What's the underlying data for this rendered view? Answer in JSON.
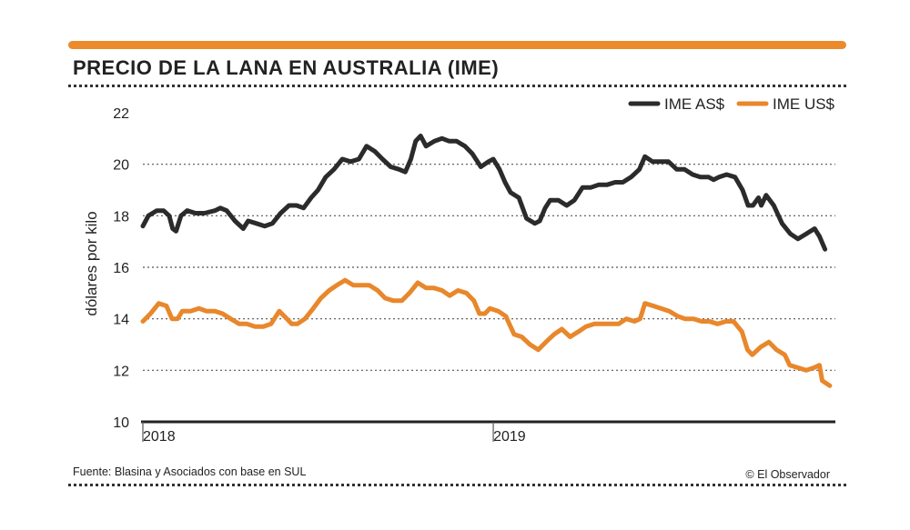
{
  "title": "PRECIO DE LA LANA EN AUSTRALIA (IME)",
  "source": "Fuente: Blasina y Asociados con base en SUL",
  "credit": "© El Observador",
  "colors": {
    "accent": "#ec8a2e",
    "series_as": "#2b2b2b",
    "series_us": "#e8872b"
  },
  "chart_data": {
    "type": "line",
    "title": "PRECIO DE LA LANA EN AUSTRALIA (IME)",
    "xlabel": "",
    "ylabel": "dólares por kilo",
    "ylim": [
      10,
      22
    ],
    "yticks": [
      "10",
      "12",
      "14",
      "16",
      "18",
      "20",
      "22"
    ],
    "xlim": [
      0,
      100
    ],
    "xticks": [
      {
        "x": 0,
        "label": "2018"
      },
      {
        "x": 50.6,
        "label": "2019"
      }
    ],
    "grid": true,
    "legend": "top-right",
    "series": [
      {
        "name": "IME AS$",
        "color": "#2b2b2b",
        "points": [
          [
            0,
            17.6
          ],
          [
            0.8,
            18.0
          ],
          [
            2,
            18.2
          ],
          [
            3,
            18.2
          ],
          [
            3.8,
            18.0
          ],
          [
            4.3,
            17.5
          ],
          [
            4.8,
            17.4
          ],
          [
            5.5,
            18.0
          ],
          [
            6.4,
            18.2
          ],
          [
            7.6,
            18.1
          ],
          [
            8.9,
            18.1
          ],
          [
            10.4,
            18.2
          ],
          [
            11.2,
            18.3
          ],
          [
            12.1,
            18.2
          ],
          [
            13.3,
            17.8
          ],
          [
            14.5,
            17.5
          ],
          [
            15.2,
            17.8
          ],
          [
            16.4,
            17.7
          ],
          [
            17.6,
            17.6
          ],
          [
            18.7,
            17.7
          ],
          [
            19.9,
            18.1
          ],
          [
            21.1,
            18.4
          ],
          [
            22.2,
            18.4
          ],
          [
            23.2,
            18.3
          ],
          [
            24.3,
            18.7
          ],
          [
            25.3,
            19.0
          ],
          [
            26.4,
            19.5
          ],
          [
            27.6,
            19.8
          ],
          [
            28.8,
            20.2
          ],
          [
            30.0,
            20.1
          ],
          [
            31.2,
            20.2
          ],
          [
            32.3,
            20.7
          ],
          [
            33.5,
            20.5
          ],
          [
            34.6,
            20.2
          ],
          [
            35.8,
            19.9
          ],
          [
            37.0,
            19.8
          ],
          [
            37.9,
            19.7
          ],
          [
            38.7,
            20.2
          ],
          [
            39.4,
            20.9
          ],
          [
            40.1,
            21.1
          ],
          [
            40.9,
            20.7
          ],
          [
            42.1,
            20.9
          ],
          [
            43.2,
            21.0
          ],
          [
            44.2,
            20.9
          ],
          [
            45.3,
            20.9
          ],
          [
            46.5,
            20.7
          ],
          [
            47.6,
            20.4
          ],
          [
            48.8,
            19.9
          ],
          [
            49.9,
            20.1
          ],
          [
            50.6,
            20.2
          ],
          [
            51.5,
            19.8
          ],
          [
            52.3,
            19.3
          ],
          [
            53.1,
            18.9
          ],
          [
            54.3,
            18.7
          ],
          [
            55.4,
            17.9
          ],
          [
            56.6,
            17.7
          ],
          [
            57.3,
            17.8
          ],
          [
            58.1,
            18.3
          ],
          [
            58.8,
            18.6
          ],
          [
            60.0,
            18.6
          ],
          [
            61.2,
            18.4
          ],
          [
            62.3,
            18.6
          ],
          [
            63.5,
            19.1
          ],
          [
            64.7,
            19.1
          ],
          [
            65.8,
            19.2
          ],
          [
            67.0,
            19.2
          ],
          [
            68.2,
            19.3
          ],
          [
            69.3,
            19.3
          ],
          [
            70.5,
            19.5
          ],
          [
            71.7,
            19.8
          ],
          [
            72.5,
            20.3
          ],
          [
            73.6,
            20.1
          ],
          [
            74.7,
            20.1
          ],
          [
            75.9,
            20.1
          ],
          [
            77.1,
            19.8
          ],
          [
            78.2,
            19.8
          ],
          [
            79.4,
            19.6
          ],
          [
            80.5,
            19.5
          ],
          [
            81.7,
            19.5
          ],
          [
            82.4,
            19.4
          ],
          [
            83.2,
            19.5
          ],
          [
            84.3,
            19.6
          ],
          [
            85.5,
            19.5
          ],
          [
            86.6,
            19.0
          ],
          [
            87.4,
            18.4
          ],
          [
            88.1,
            18.4
          ],
          [
            88.9,
            18.7
          ],
          [
            89.3,
            18.4
          ],
          [
            90.0,
            18.8
          ],
          [
            91.1,
            18.4
          ],
          [
            92.3,
            17.7
          ],
          [
            93.5,
            17.3
          ],
          [
            94.6,
            17.1
          ],
          [
            95.8,
            17.3
          ],
          [
            97.0,
            17.5
          ],
          [
            97.7,
            17.2
          ],
          [
            98.5,
            16.7
          ]
        ]
      },
      {
        "name": "IME US$",
        "color": "#e8872b",
        "points": [
          [
            0,
            13.9
          ],
          [
            1.1,
            14.2
          ],
          [
            2.3,
            14.6
          ],
          [
            3.4,
            14.5
          ],
          [
            4.2,
            14.0
          ],
          [
            5.0,
            14.0
          ],
          [
            5.7,
            14.3
          ],
          [
            6.9,
            14.3
          ],
          [
            8.1,
            14.4
          ],
          [
            9.2,
            14.3
          ],
          [
            10.4,
            14.3
          ],
          [
            11.5,
            14.2
          ],
          [
            12.7,
            14.0
          ],
          [
            13.9,
            13.8
          ],
          [
            15.0,
            13.8
          ],
          [
            16.2,
            13.7
          ],
          [
            17.4,
            13.7
          ],
          [
            18.5,
            13.8
          ],
          [
            19.7,
            14.3
          ],
          [
            20.8,
            14.0
          ],
          [
            21.5,
            13.8
          ],
          [
            22.3,
            13.8
          ],
          [
            23.4,
            14.0
          ],
          [
            24.6,
            14.4
          ],
          [
            25.7,
            14.8
          ],
          [
            26.9,
            15.1
          ],
          [
            28.0,
            15.3
          ],
          [
            29.2,
            15.5
          ],
          [
            30.4,
            15.3
          ],
          [
            31.5,
            15.3
          ],
          [
            32.7,
            15.3
          ],
          [
            33.9,
            15.1
          ],
          [
            35.0,
            14.8
          ],
          [
            36.2,
            14.7
          ],
          [
            37.4,
            14.7
          ],
          [
            38.5,
            15.0
          ],
          [
            39.7,
            15.4
          ],
          [
            40.9,
            15.2
          ],
          [
            42.0,
            15.2
          ],
          [
            43.2,
            15.1
          ],
          [
            44.3,
            14.9
          ],
          [
            45.5,
            15.1
          ],
          [
            46.7,
            15.0
          ],
          [
            47.8,
            14.7
          ],
          [
            48.6,
            14.2
          ],
          [
            49.4,
            14.2
          ],
          [
            50.1,
            14.4
          ],
          [
            51.3,
            14.3
          ],
          [
            52.4,
            14.1
          ],
          [
            53.6,
            13.4
          ],
          [
            54.7,
            13.3
          ],
          [
            55.9,
            13.0
          ],
          [
            57.1,
            12.8
          ],
          [
            58.2,
            13.1
          ],
          [
            59.4,
            13.4
          ],
          [
            60.5,
            13.6
          ],
          [
            61.7,
            13.3
          ],
          [
            62.9,
            13.5
          ],
          [
            64.0,
            13.7
          ],
          [
            65.2,
            13.8
          ],
          [
            66.4,
            13.8
          ],
          [
            67.5,
            13.8
          ],
          [
            68.7,
            13.8
          ],
          [
            69.8,
            14.0
          ],
          [
            71.0,
            13.9
          ],
          [
            71.8,
            14.0
          ],
          [
            72.5,
            14.6
          ],
          [
            73.7,
            14.5
          ],
          [
            74.8,
            14.4
          ],
          [
            76.0,
            14.3
          ],
          [
            77.2,
            14.1
          ],
          [
            78.3,
            14.0
          ],
          [
            79.5,
            14.0
          ],
          [
            80.7,
            13.9
          ],
          [
            81.8,
            13.9
          ],
          [
            83.0,
            13.8
          ],
          [
            84.2,
            13.9
          ],
          [
            85.3,
            13.9
          ],
          [
            86.5,
            13.5
          ],
          [
            87.3,
            12.8
          ],
          [
            88.0,
            12.6
          ],
          [
            89.2,
            12.9
          ],
          [
            90.4,
            13.1
          ],
          [
            91.5,
            12.8
          ],
          [
            92.7,
            12.6
          ],
          [
            93.4,
            12.2
          ],
          [
            94.6,
            12.1
          ],
          [
            95.8,
            12.0
          ],
          [
            96.9,
            12.1
          ],
          [
            97.7,
            12.2
          ],
          [
            98.1,
            11.6
          ],
          [
            99.2,
            11.4
          ]
        ]
      }
    ]
  }
}
